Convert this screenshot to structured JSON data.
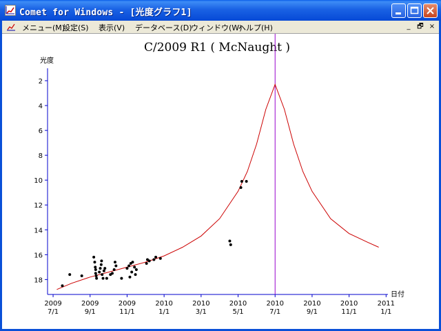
{
  "window": {
    "title": "Comet for Windows - [光度グラフ1]",
    "icon": "graph-window-icon",
    "buttons": [
      "minimize-icon",
      "maximize-icon",
      "close-icon"
    ]
  },
  "menu": {
    "items": [
      "メニュー(M)",
      "設定(S)",
      "表示(V)",
      "データベース(D)",
      "ウィンドウ(W)",
      "ヘルプ(H)"
    ],
    "mdi_buttons": [
      "_",
      "🗗",
      "×"
    ]
  },
  "colors": {
    "titlebar": "#0a50d8",
    "curve": "#cc0000",
    "perihelion_line": "#9900cc",
    "axis": "#0000cc",
    "points": "#000000"
  },
  "chart_data": {
    "type": "scatter",
    "title": "C/2009 R1 ( McNaught )",
    "ylabel": "光度",
    "xlabel": "日付",
    "y_reversed": true,
    "ylim": [
      19.2,
      1
    ],
    "y_ticks": [
      2,
      4,
      6,
      8,
      10,
      12,
      14,
      16,
      18
    ],
    "x_ticks": [
      {
        "year": "2009",
        "date": "7/1"
      },
      {
        "year": "2009",
        "date": "9/1"
      },
      {
        "year": "2009",
        "date": "11/1"
      },
      {
        "year": "2010",
        "date": "1/1"
      },
      {
        "year": "2010",
        "date": "3/1"
      },
      {
        "year": "2010",
        "date": "5/1"
      },
      {
        "year": "2010",
        "date": "7/1"
      },
      {
        "year": "2010",
        "date": "9/1"
      },
      {
        "year": "2010",
        "date": "11/1"
      },
      {
        "year": "2011",
        "date": "1/1"
      }
    ],
    "xlim_months": [
      -0.3,
      18.1
    ],
    "perihelion_month": 12.0,
    "curve": [
      {
        "x": 0.2,
        "y": 18.8
      },
      {
        "x": 1,
        "y": 18.3
      },
      {
        "x": 2,
        "y": 17.8
      },
      {
        "x": 3,
        "y": 17.4
      },
      {
        "x": 4,
        "y": 17.0
      },
      {
        "x": 5,
        "y": 16.6
      },
      {
        "x": 6,
        "y": 16.1
      },
      {
        "x": 7,
        "y": 15.4
      },
      {
        "x": 8,
        "y": 14.5
      },
      {
        "x": 9,
        "y": 13.1
      },
      {
        "x": 10,
        "y": 10.9
      },
      {
        "x": 10.5,
        "y": 9.3
      },
      {
        "x": 11,
        "y": 7.1
      },
      {
        "x": 11.5,
        "y": 4.3
      },
      {
        "x": 12,
        "y": 2.3
      },
      {
        "x": 12.5,
        "y": 4.3
      },
      {
        "x": 13,
        "y": 7.1
      },
      {
        "x": 13.5,
        "y": 9.3
      },
      {
        "x": 14,
        "y": 10.9
      },
      {
        "x": 15,
        "y": 13.1
      },
      {
        "x": 16,
        "y": 14.3
      },
      {
        "x": 17,
        "y": 15.0
      },
      {
        "x": 17.6,
        "y": 15.4
      }
    ],
    "points": [
      {
        "x": 0.5,
        "y": 18.5
      },
      {
        "x": 0.9,
        "y": 17.6
      },
      {
        "x": 1.55,
        "y": 17.7
      },
      {
        "x": 2.2,
        "y": 16.2
      },
      {
        "x": 2.25,
        "y": 16.6
      },
      {
        "x": 2.28,
        "y": 17.0
      },
      {
        "x": 2.3,
        "y": 17.2
      },
      {
        "x": 2.3,
        "y": 17.5
      },
      {
        "x": 2.33,
        "y": 17.7
      },
      {
        "x": 2.35,
        "y": 17.9
      },
      {
        "x": 2.5,
        "y": 17.4
      },
      {
        "x": 2.55,
        "y": 17.1
      },
      {
        "x": 2.6,
        "y": 16.8
      },
      {
        "x": 2.62,
        "y": 16.5
      },
      {
        "x": 2.65,
        "y": 17.6
      },
      {
        "x": 2.7,
        "y": 17.9
      },
      {
        "x": 2.75,
        "y": 17.3
      },
      {
        "x": 2.8,
        "y": 17.1
      },
      {
        "x": 2.9,
        "y": 17.9
      },
      {
        "x": 3.1,
        "y": 17.6
      },
      {
        "x": 3.2,
        "y": 17.5
      },
      {
        "x": 3.3,
        "y": 17.2
      },
      {
        "x": 3.35,
        "y": 16.6
      },
      {
        "x": 3.4,
        "y": 16.9
      },
      {
        "x": 3.7,
        "y": 17.9
      },
      {
        "x": 4.0,
        "y": 17.1
      },
      {
        "x": 4.1,
        "y": 16.9
      },
      {
        "x": 4.15,
        "y": 17.8
      },
      {
        "x": 4.2,
        "y": 16.7
      },
      {
        "x": 4.25,
        "y": 17.4
      },
      {
        "x": 4.3,
        "y": 16.6
      },
      {
        "x": 4.4,
        "y": 17.0
      },
      {
        "x": 4.45,
        "y": 17.6
      },
      {
        "x": 4.5,
        "y": 17.2
      },
      {
        "x": 5.05,
        "y": 16.7
      },
      {
        "x": 5.1,
        "y": 16.4
      },
      {
        "x": 5.2,
        "y": 16.5
      },
      {
        "x": 5.45,
        "y": 16.4
      },
      {
        "x": 5.55,
        "y": 16.2
      },
      {
        "x": 5.8,
        "y": 16.3
      },
      {
        "x": 9.55,
        "y": 14.9
      },
      {
        "x": 9.6,
        "y": 15.2
      },
      {
        "x": 10.15,
        "y": 10.6
      },
      {
        "x": 10.2,
        "y": 10.1
      },
      {
        "x": 10.45,
        "y": 10.1
      }
    ]
  }
}
